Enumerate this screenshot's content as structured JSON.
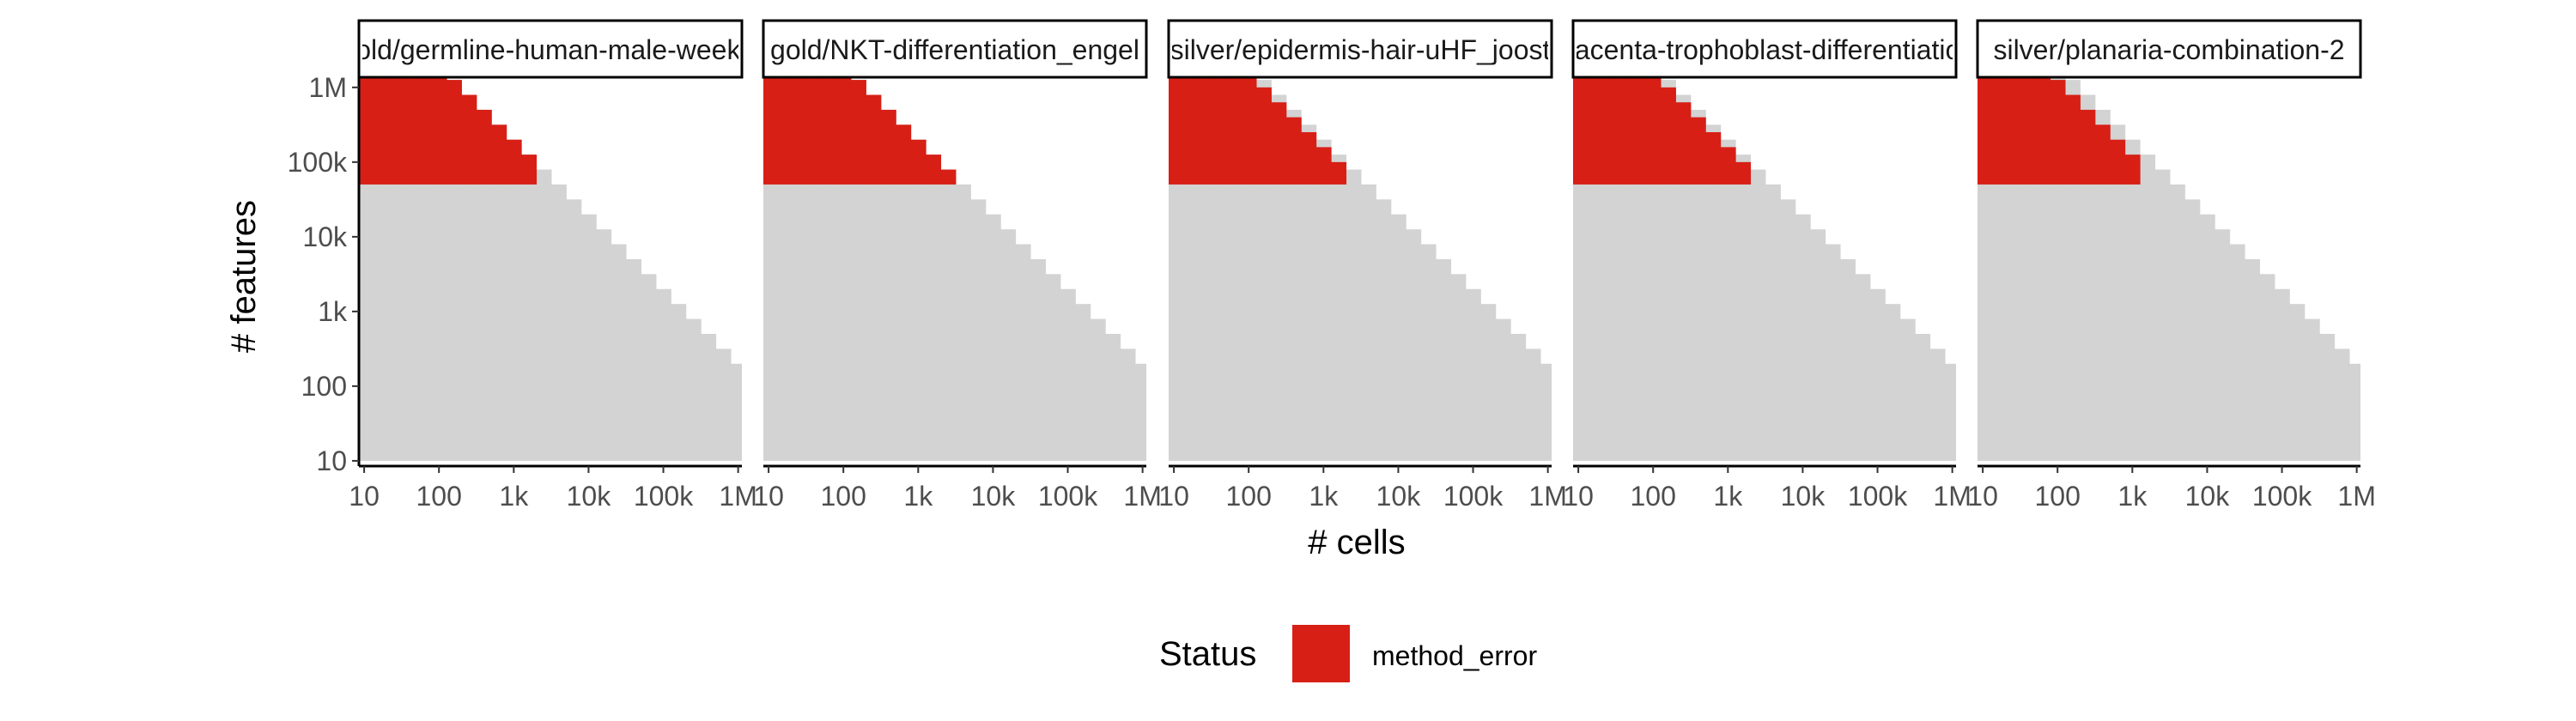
{
  "chart_data": {
    "type": "heatmap",
    "x_axis": {
      "label": "# cells",
      "scale": "log10",
      "range": [
        10,
        1000000
      ],
      "ticks": [
        10,
        100,
        1000,
        10000,
        100000,
        1000000
      ],
      "tick_labels": [
        "10",
        "100",
        "1k",
        "10k",
        "100k",
        "1M"
      ]
    },
    "y_axis": {
      "label": "# features",
      "scale": "log10",
      "range": [
        10,
        1000000
      ],
      "ticks": [
        10,
        100,
        1000,
        10000,
        100000,
        1000000
      ],
      "tick_labels": [
        "10",
        "100",
        "1k",
        "10k",
        "100k",
        "1M"
      ]
    },
    "grid": false,
    "legend": {
      "title": "Status",
      "placement": "bottom",
      "entries": [
        {
          "label": "method_error",
          "color": "#d71f16"
        }
      ]
    },
    "colors": {
      "tested": "#d3d3d3",
      "method_error": "#d71f16"
    },
    "cell_grid": {
      "log10_cells": [
        1.0,
        1.2,
        1.4,
        1.6,
        1.8,
        2.0,
        2.2,
        2.4,
        2.6,
        2.8,
        3.0,
        3.2,
        3.4,
        3.6,
        3.8,
        4.0,
        4.2,
        4.4,
        4.6,
        4.8,
        5.0,
        5.2,
        5.4,
        5.6,
        5.8,
        6.0
      ],
      "feature_floor_log10": 1.0,
      "max_log10_features": [
        6.3,
        6.3,
        6.3,
        6.3,
        6.3,
        6.3,
        6.1,
        5.9,
        5.7,
        5.5,
        5.3,
        5.1,
        4.9,
        4.7,
        4.5,
        4.3,
        4.1,
        3.9,
        3.7,
        3.5,
        3.3,
        3.1,
        2.9,
        2.7,
        2.5,
        2.3
      ]
    },
    "error_region": {
      "min_log10_features": 4.7
    },
    "panels": [
      {
        "title": "gold/germline-human-male-weekly",
        "error_max_log10_features": [
          6.3,
          6.3,
          6.3,
          6.3,
          6.3,
          6.3,
          6.1,
          5.9,
          5.7,
          5.5,
          5.3,
          5.1
        ]
      },
      {
        "title": "gold/NKT-differentiation_engel",
        "error_max_log10_features": [
          6.3,
          6.3,
          6.3,
          6.3,
          6.3,
          6.3,
          6.1,
          5.9,
          5.7,
          5.5,
          5.3,
          5.1,
          4.9
        ]
      },
      {
        "title": "silver/epidermis-hair-uHF_joost",
        "error_max_log10_features": [
          6.3,
          6.3,
          6.3,
          6.3,
          6.3,
          6.3,
          6.0,
          5.8,
          5.6,
          5.4,
          5.2,
          5.0
        ]
      },
      {
        "title": "placenta-trophoblast-differentiation",
        "error_max_log10_features": [
          6.3,
          6.3,
          6.3,
          6.3,
          6.3,
          6.3,
          6.0,
          5.8,
          5.6,
          5.4,
          5.2,
          5.0
        ]
      },
      {
        "title": "silver/planaria-combination-2",
        "error_max_log10_features": [
          6.3,
          6.3,
          6.3,
          6.3,
          6.3,
          6.1,
          5.9,
          5.7,
          5.5,
          5.3,
          5.1
        ]
      }
    ]
  }
}
